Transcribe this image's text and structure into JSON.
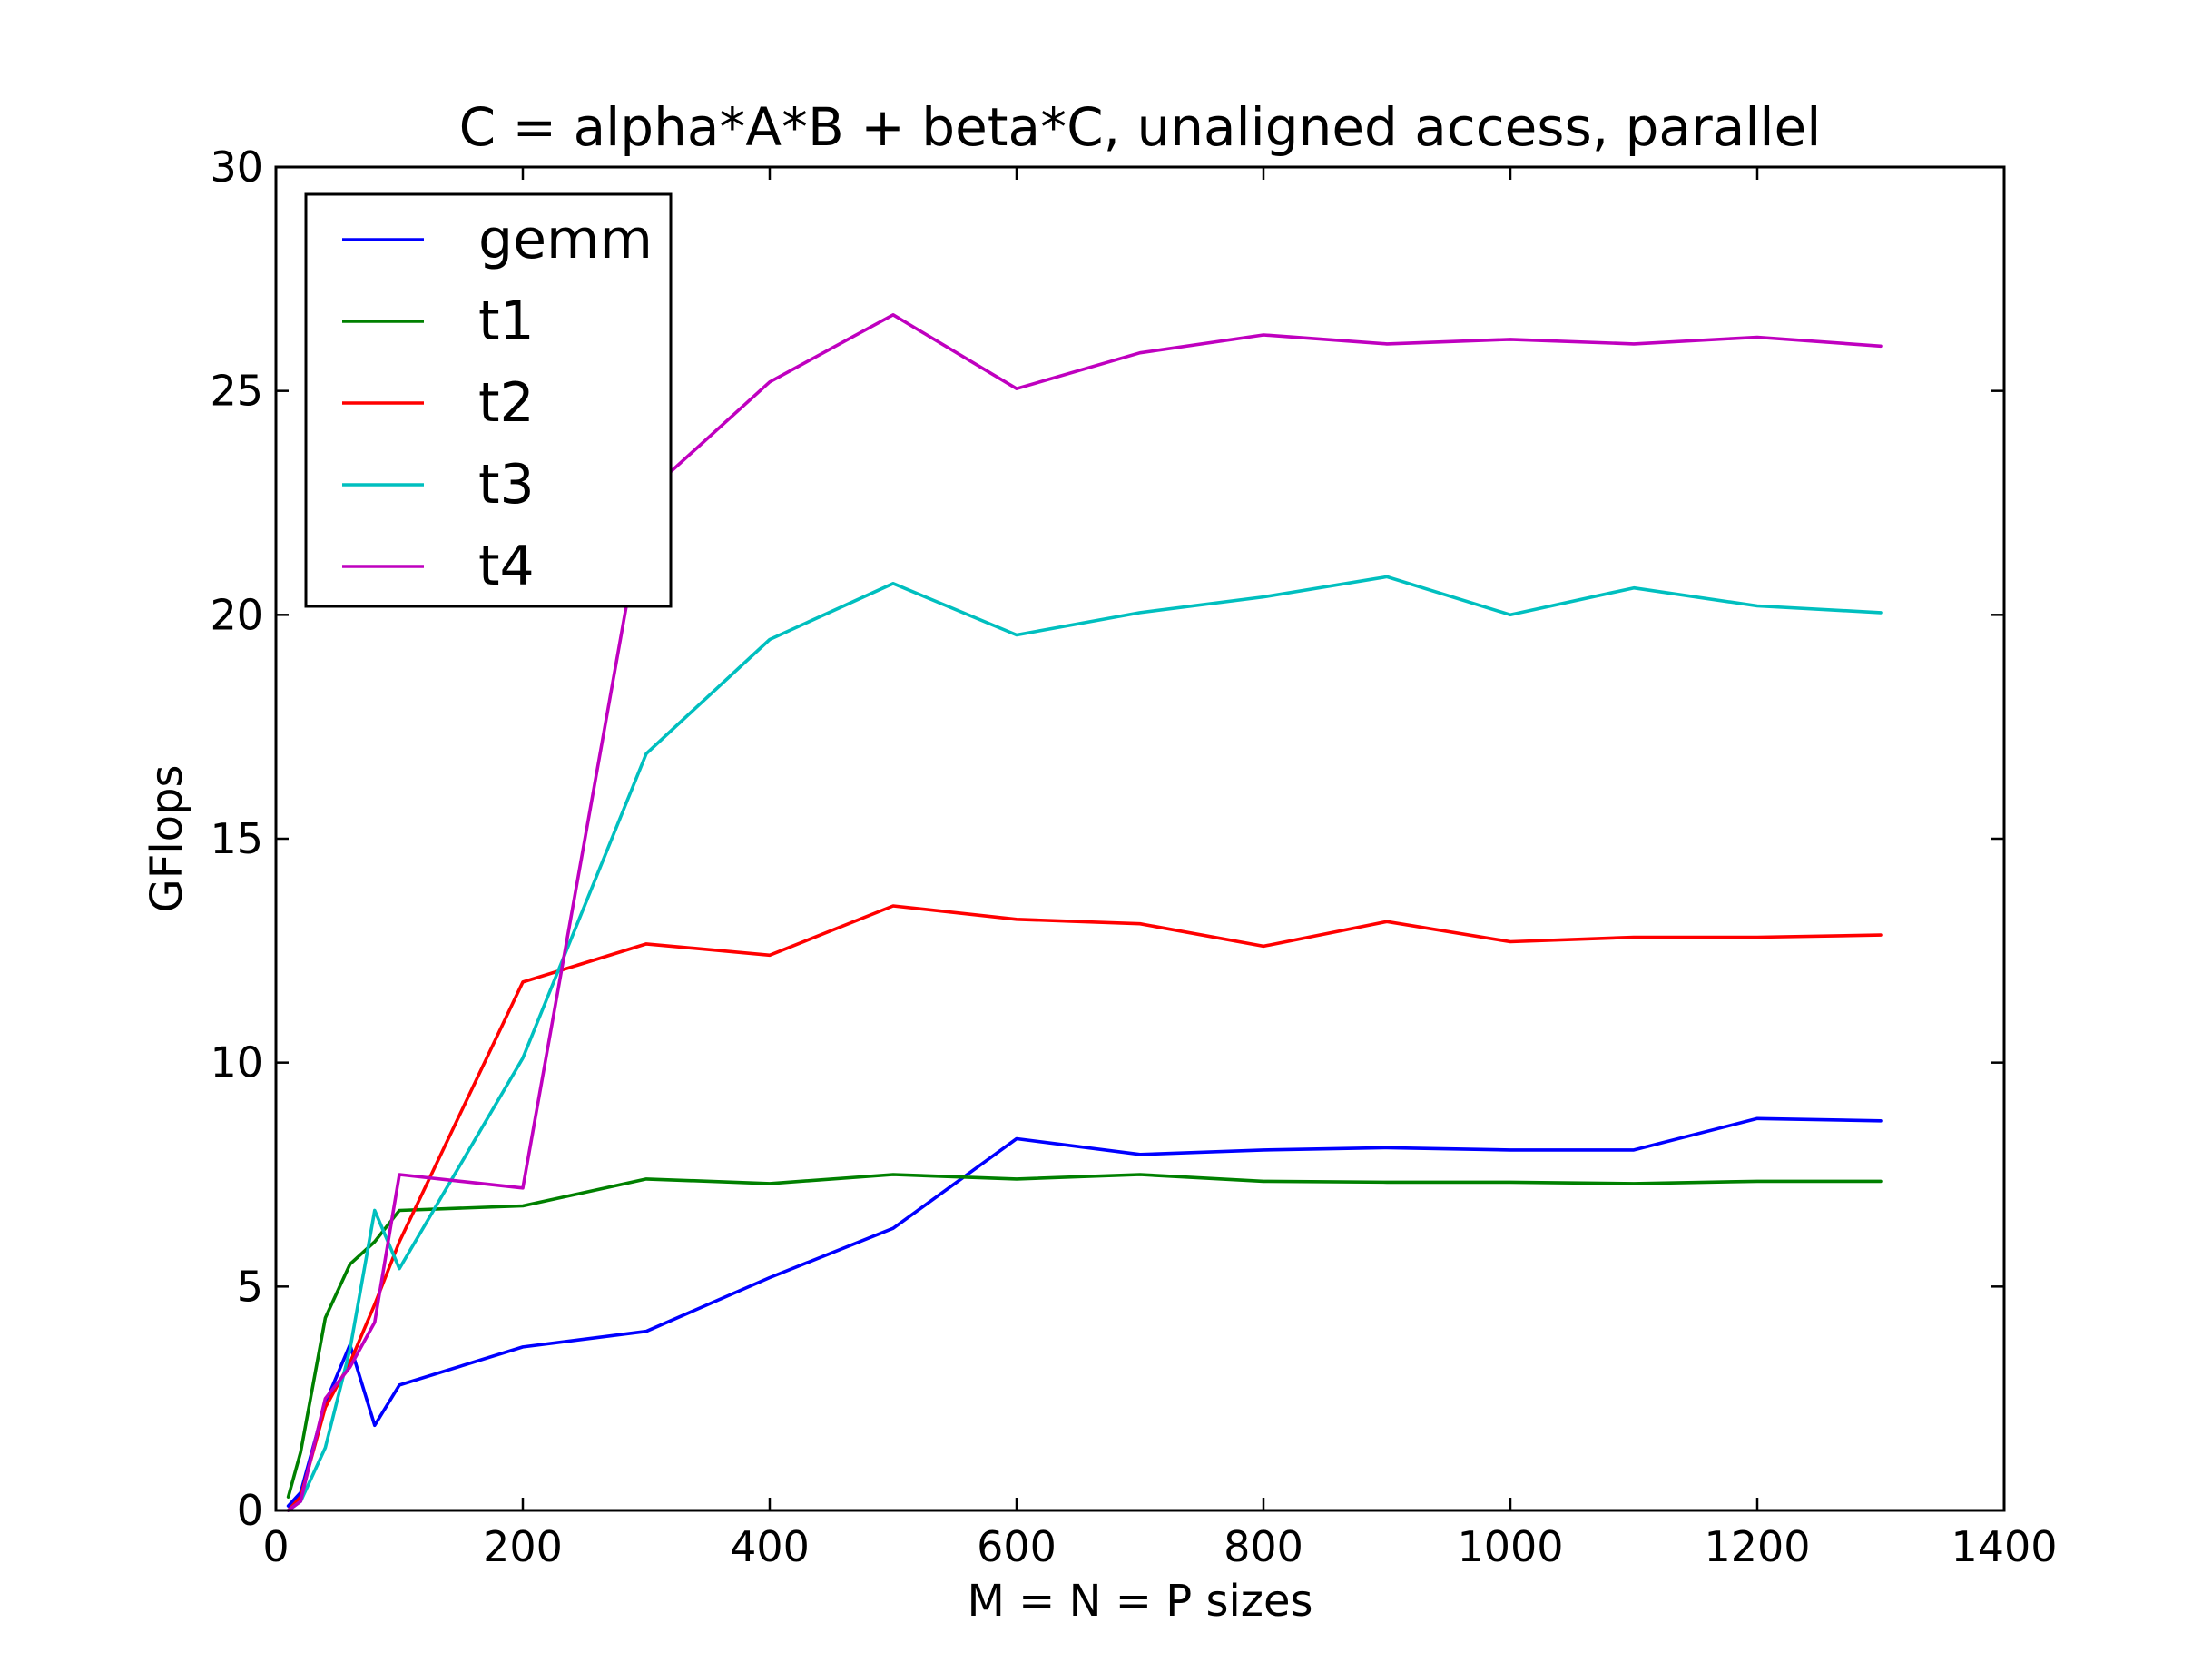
{
  "chart_data": {
    "type": "line",
    "title": "C = alpha*A*B + beta*C, unaligned access, parallel",
    "xlabel": "M = N = P sizes",
    "ylabel": "GFlops",
    "xlim": [
      0,
      1400
    ],
    "ylim": [
      0,
      30
    ],
    "xticks": [
      0,
      200,
      400,
      600,
      800,
      1000,
      1200,
      1400
    ],
    "yticks": [
      0,
      5,
      10,
      15,
      20,
      25,
      30
    ],
    "xtick_labels": [
      "0",
      "200",
      "400",
      "600",
      "800",
      "1000",
      "1200",
      "1400"
    ],
    "ytick_labels": [
      "0",
      "5",
      "10",
      "15",
      "20",
      "25",
      "30"
    ],
    "grid": false,
    "legend_position": "upper-left",
    "x": [
      10,
      20,
      40,
      60,
      80,
      100,
      200,
      300,
      400,
      500,
      600,
      700,
      800,
      900,
      1000,
      1100,
      1200,
      1300
    ],
    "series": [
      {
        "name": "gemm",
        "color": "#0000ff",
        "values": [
          0.1,
          0.4,
          2.4,
          3.7,
          1.9,
          2.8,
          3.65,
          4.0,
          5.2,
          6.3,
          8.3,
          7.95,
          8.05,
          8.1,
          8.05,
          8.05,
          8.75,
          8.7
        ]
      },
      {
        "name": "t1",
        "color": "#008000",
        "values": [
          0.3,
          1.3,
          4.3,
          5.5,
          6.0,
          6.7,
          6.8,
          7.4,
          7.3,
          7.5,
          7.4,
          7.5,
          7.35,
          7.33,
          7.33,
          7.3,
          7.35,
          7.35
        ]
      },
      {
        "name": "t2",
        "color": "#ff0000",
        "values": [
          0.0,
          0.3,
          2.3,
          3.3,
          4.6,
          6.0,
          11.8,
          12.65,
          12.4,
          13.5,
          13.2,
          13.1,
          12.6,
          13.15,
          12.7,
          12.8,
          12.8,
          12.85
        ]
      },
      {
        "name": "t3",
        "color": "#00bfbf",
        "values": [
          0.0,
          0.2,
          1.4,
          3.6,
          6.7,
          5.4,
          10.1,
          16.9,
          19.45,
          20.7,
          19.55,
          20.05,
          20.4,
          20.85,
          20.0,
          20.6,
          20.2,
          20.05
        ]
      },
      {
        "name": "t4",
        "color": "#bf00bf",
        "values": [
          0.0,
          0.2,
          2.5,
          3.2,
          4.2,
          7.5,
          7.2,
          22.7,
          25.2,
          26.7,
          25.05,
          25.85,
          26.25,
          26.05,
          26.15,
          26.05,
          26.2,
          26.0
        ]
      }
    ]
  }
}
